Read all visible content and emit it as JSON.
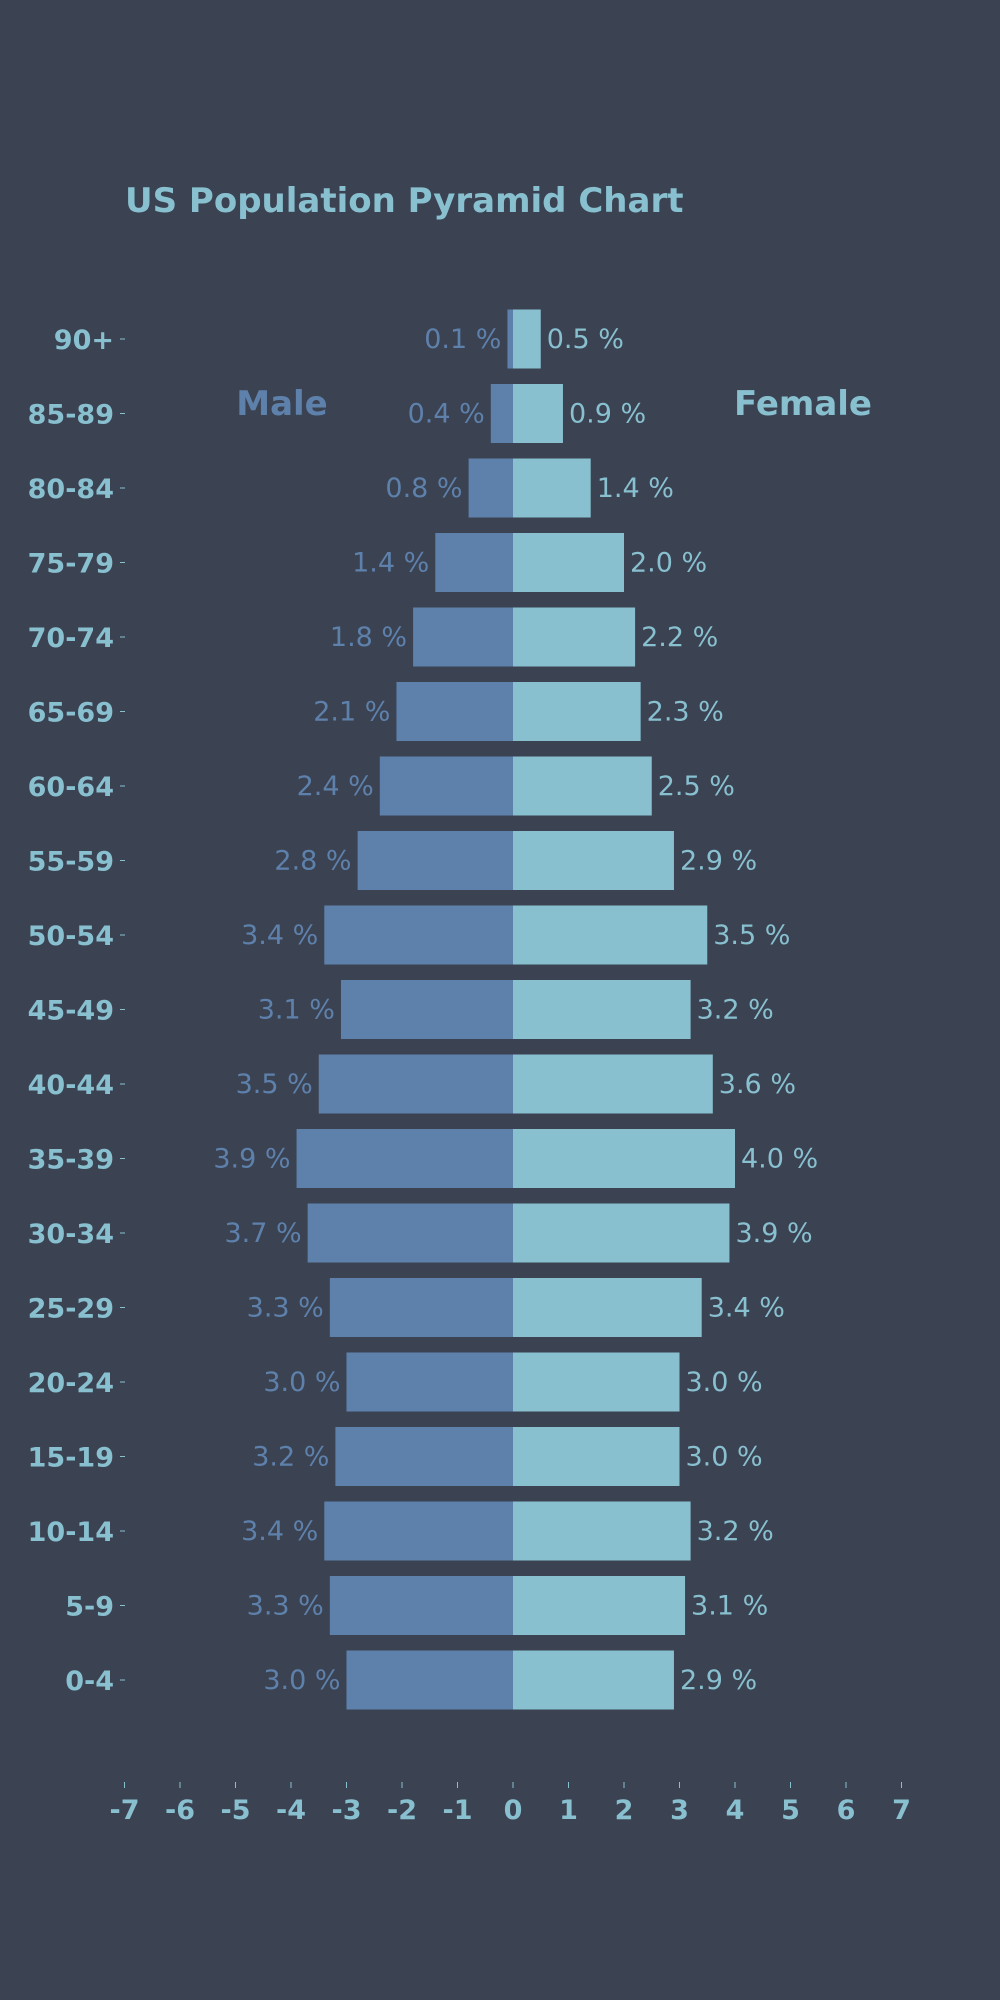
{
  "colors": {
    "background": "#3b4252",
    "male": "#5e81ac",
    "female": "#88c0d0",
    "title": "#88c0d0",
    "axis": "#88c0d0"
  },
  "chart_data": {
    "type": "bar",
    "orientation": "horizontal",
    "title": "US Population Pyramid Chart",
    "categories": [
      "90+",
      "85-89",
      "80-84",
      "75-79",
      "70-74",
      "65-69",
      "60-64",
      "55-59",
      "50-54",
      "45-49",
      "40-44",
      "35-39",
      "30-34",
      "25-29",
      "20-24",
      "15-19",
      "10-14",
      "5-9",
      "0-4"
    ],
    "series": [
      {
        "name": "Male",
        "values": [
          -0.1,
          -0.4,
          -0.8,
          -1.4,
          -1.8,
          -2.1,
          -2.4,
          -2.8,
          -3.4,
          -3.1,
          -3.5,
          -3.9,
          -3.7,
          -3.3,
          -3.0,
          -3.2,
          -3.4,
          -3.3,
          -3.0
        ],
        "labels": [
          "0.1 %",
          "0.4 %",
          "0.8 %",
          "1.4 %",
          "1.8 %",
          "2.1 %",
          "2.4 %",
          "2.8 %",
          "3.4 %",
          "3.1 %",
          "3.5 %",
          "3.9 %",
          "3.7 %",
          "3.3 %",
          "3.0 %",
          "3.2 %",
          "3.4 %",
          "3.3 %",
          "3.0 %"
        ]
      },
      {
        "name": "Female",
        "values": [
          0.5,
          0.9,
          1.4,
          2.0,
          2.2,
          2.3,
          2.5,
          2.9,
          3.5,
          3.2,
          3.6,
          4.0,
          3.9,
          3.4,
          3.0,
          3.0,
          3.2,
          3.1,
          2.9
        ],
        "labels": [
          "0.5 %",
          "0.9 %",
          "1.4 %",
          "2.0 %",
          "2.2 %",
          "2.3 %",
          "2.5 %",
          "2.9 %",
          "3.5 %",
          "3.2 %",
          "3.6 %",
          "4.0 %",
          "3.9 %",
          "3.4 %",
          "3.0 %",
          "3.0 %",
          "3.2 %",
          "3.1 %",
          "2.9 %"
        ]
      }
    ],
    "xlim": [
      -7,
      7
    ],
    "xticks": [
      -7,
      -6,
      -5,
      -4,
      -3,
      -2,
      -1,
      0,
      1,
      2,
      3,
      4,
      5,
      6,
      7
    ],
    "xtick_labels": [
      "-7",
      "-6",
      "-5",
      "-4",
      "-3",
      "-2",
      "-1",
      "0",
      "1",
      "2",
      "3",
      "4",
      "5",
      "6",
      "7"
    ],
    "grid": false,
    "legend": "none"
  }
}
